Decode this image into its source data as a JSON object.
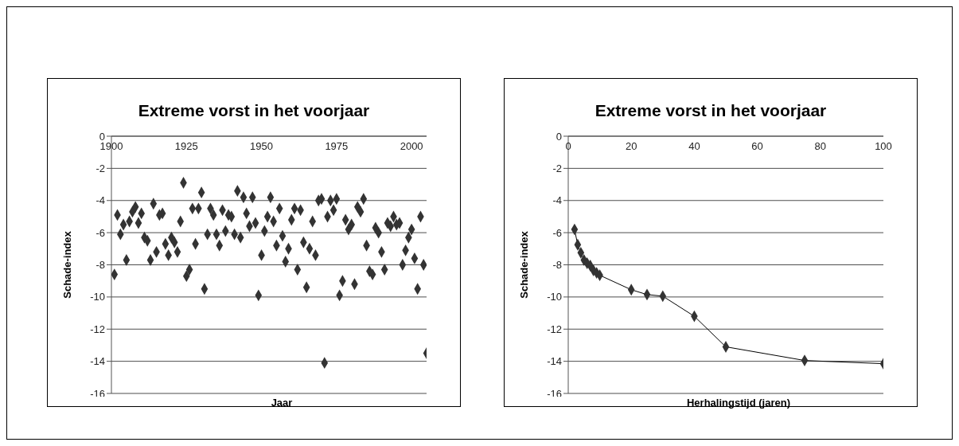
{
  "chart_data": [
    {
      "type": "scatter",
      "title": "Extreme vorst in het voorjaar",
      "xlabel": "Jaar",
      "ylabel": "Schade-index",
      "x": [
        1901,
        1902,
        1903,
        1904,
        1905,
        1906,
        1907,
        1908,
        1909,
        1910,
        1911,
        1912,
        1913,
        1914,
        1915,
        1916,
        1917,
        1918,
        1919,
        1920,
        1921,
        1922,
        1923,
        1924,
        1925,
        1926,
        1927,
        1928,
        1929,
        1930,
        1931,
        1932,
        1933,
        1934,
        1935,
        1936,
        1937,
        1938,
        1939,
        1940,
        1941,
        1942,
        1943,
        1944,
        1945,
        1946,
        1947,
        1948,
        1949,
        1950,
        1951,
        1952,
        1953,
        1954,
        1955,
        1956,
        1957,
        1958,
        1959,
        1960,
        1961,
        1962,
        1963,
        1964,
        1965,
        1966,
        1967,
        1968,
        1969,
        1970,
        1971,
        1972,
        1973,
        1974,
        1975,
        1976,
        1977,
        1978,
        1979,
        1980,
        1981,
        1982,
        1983,
        1984,
        1985,
        1986,
        1987,
        1988,
        1989,
        1990,
        1991,
        1992,
        1993,
        1994,
        1995,
        1996,
        1997,
        1998,
        1999,
        2000,
        2001,
        2002,
        2003,
        2004,
        2005
      ],
      "series": [
        {
          "color": "#333333",
          "values": [
            -8.6,
            -4.9,
            -6.1,
            -5.5,
            -7.7,
            -5.3,
            -4.7,
            -4.4,
            -5.4,
            -4.8,
            -6.3,
            -6.5,
            -7.7,
            -4.2,
            -7.2,
            -4.9,
            -4.8,
            -6.7,
            -7.4,
            -6.3,
            -6.6,
            -7.2,
            -5.3,
            -2.9,
            -8.7,
            -8.3,
            -4.5,
            -6.7,
            -4.5,
            -3.5,
            -9.5,
            -6.1,
            -4.5,
            -4.9,
            -6.1,
            -6.8,
            -4.6,
            -5.9,
            -4.9,
            -5.0,
            -6.1,
            -3.4,
            -6.3,
            -3.8,
            -4.8,
            -5.6,
            -3.8,
            -5.4,
            -9.9,
            -7.4,
            -5.9,
            -5.0,
            -3.8,
            -5.3,
            -6.8,
            -4.5,
            -6.2,
            -7.8,
            -7.0,
            -5.2,
            -4.5,
            -8.3,
            -4.6,
            -6.6,
            -9.4,
            -7.0,
            -5.3,
            -7.4,
            -4.0,
            -3.9,
            -14.1,
            -5.0,
            -4.0,
            -4.6,
            -3.9,
            -9.9,
            -9.0,
            -5.2,
            -5.8,
            -5.5,
            -9.2,
            -4.4,
            -4.7,
            -3.9,
            -6.8,
            -8.4,
            -8.6,
            -5.7,
            -6.0,
            -7.2,
            -8.3,
            -5.4,
            -5.6,
            -5.0,
            -5.5,
            -5.4,
            -8.0,
            -7.1,
            -6.3,
            -5.8,
            -7.6,
            -9.5,
            -5.0,
            -8.0,
            -13.5
          ]
        }
      ],
      "xlim": [
        1900,
        2005
      ],
      "xticks": [
        1900,
        1925,
        1950,
        1975,
        2000
      ],
      "ylim": [
        -16,
        0
      ],
      "yticks": [
        -16,
        -14,
        -12,
        -10,
        -8,
        -6,
        -4,
        -2,
        0
      ],
      "grid": "y",
      "marker": "diamond",
      "legend": false
    },
    {
      "type": "line",
      "title": "Extreme vorst in het voorjaar",
      "xlabel": "Herhalingstijd (jaren)",
      "ylabel": "Schade-index",
      "x": [
        2,
        3,
        4,
        5,
        6,
        7,
        8,
        9,
        10,
        20,
        25,
        30,
        40,
        50,
        75,
        100
      ],
      "series": [
        {
          "color": "#333333",
          "values": [
            -5.8,
            -6.75,
            -7.25,
            -7.7,
            -7.9,
            -8.05,
            -8.35,
            -8.5,
            -8.65,
            -9.55,
            -9.85,
            -9.95,
            -11.2,
            -13.1,
            -13.95,
            -14.15
          ]
        }
      ],
      "xlim": [
        0,
        100
      ],
      "xticks": [
        0,
        20,
        40,
        60,
        80,
        100
      ],
      "ylim": [
        -16,
        0
      ],
      "yticks": [
        -16,
        -14,
        -12,
        -10,
        -8,
        -6,
        -4,
        -2,
        0
      ],
      "grid": "y",
      "marker": "diamond",
      "line_style": "solid",
      "legend": false
    }
  ]
}
